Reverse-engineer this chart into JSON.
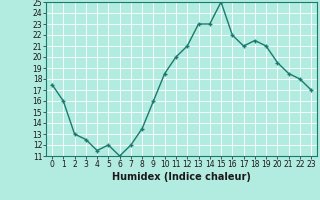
{
  "x": [
    0,
    1,
    2,
    3,
    4,
    5,
    6,
    7,
    8,
    9,
    10,
    11,
    12,
    13,
    14,
    15,
    16,
    17,
    18,
    19,
    20,
    21,
    22,
    23
  ],
  "y": [
    17.5,
    16.0,
    13.0,
    12.5,
    11.5,
    12.0,
    11.0,
    12.0,
    13.5,
    16.0,
    18.5,
    20.0,
    21.0,
    23.0,
    23.0,
    25.0,
    22.0,
    21.0,
    21.5,
    21.0,
    19.5,
    18.5,
    18.0,
    17.0
  ],
  "line_color": "#1a7a6e",
  "marker": "+",
  "bg_color": "#b2ebe0",
  "grid_color": "#a0d8cf",
  "xlabel": "Humidex (Indice chaleur)",
  "ylim": [
    11,
    25
  ],
  "xlim_min": -0.5,
  "xlim_max": 23.5,
  "yticks": [
    11,
    12,
    13,
    14,
    15,
    16,
    17,
    18,
    19,
    20,
    21,
    22,
    23,
    24,
    25
  ],
  "xticks": [
    0,
    1,
    2,
    3,
    4,
    5,
    6,
    7,
    8,
    9,
    10,
    11,
    12,
    13,
    14,
    15,
    16,
    17,
    18,
    19,
    20,
    21,
    22,
    23
  ],
  "tick_fontsize": 5.5,
  "xlabel_fontsize": 7,
  "linewidth": 1.0,
  "markersize": 3.5,
  "spine_color": "#1a7a6e"
}
